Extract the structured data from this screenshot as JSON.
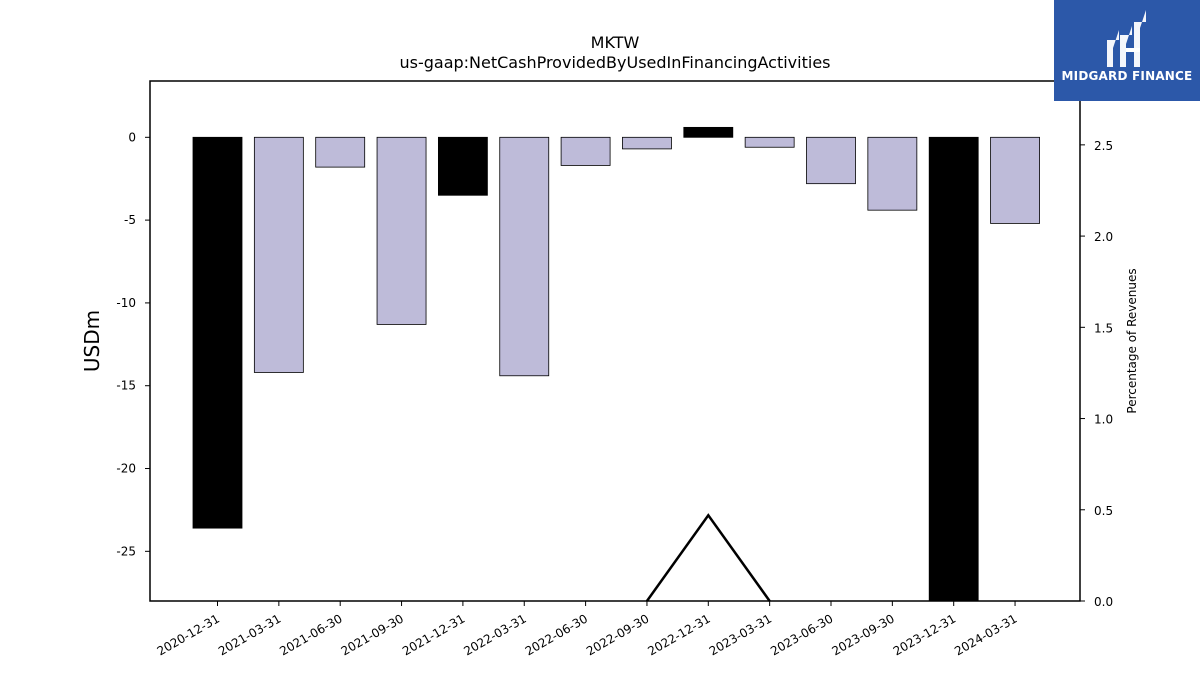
{
  "logo": {
    "text": "MIDGARD FINANCE",
    "background": "#2c58a9"
  },
  "chart_data": {
    "type": "bar",
    "title": "MKTW",
    "subtitle": "us-gaap:NetCashProvidedByUsedInFinancingActivities",
    "ylabel": "USDm",
    "y2label": "Percentage of Revenues",
    "ylim": [
      -28.0,
      3.4
    ],
    "y2lim": [
      0.0,
      2.85
    ],
    "yticks": [
      0,
      -5,
      -10,
      -15,
      -20,
      -25
    ],
    "y2ticks": [
      "0.0",
      "0.5",
      "1.0",
      "1.5",
      "2.0",
      "2.5"
    ],
    "categories": [
      "2020-12-31",
      "2021-03-31",
      "2021-06-30",
      "2021-09-30",
      "2021-12-31",
      "2022-03-31",
      "2022-06-30",
      "2022-09-30",
      "2022-12-31",
      "2023-03-31",
      "2023-06-30",
      "2023-09-30",
      "2023-12-31",
      "2024-03-31"
    ],
    "values": [
      -23.6,
      -14.2,
      -1.8,
      -11.3,
      -3.5,
      -14.4,
      -1.7,
      -0.7,
      0.6,
      -0.6,
      -2.8,
      -4.4,
      -28.0,
      -5.2
    ],
    "bar_colors": [
      "#000000",
      "#bebbd9",
      "#bebbd9",
      "#bebbd9",
      "#000000",
      "#bebbd9",
      "#bebbd9",
      "#bebbd9",
      "#000000",
      "#bebbd9",
      "#bebbd9",
      "#bebbd9",
      "#000000",
      "#bebbd9"
    ],
    "line_series": {
      "name": "",
      "axis": "right",
      "values": [
        null,
        null,
        null,
        null,
        null,
        null,
        null,
        0.0,
        0.47,
        0.0,
        null,
        null,
        null,
        null
      ],
      "color": "#000000"
    },
    "grid": false,
    "legend": "none"
  }
}
